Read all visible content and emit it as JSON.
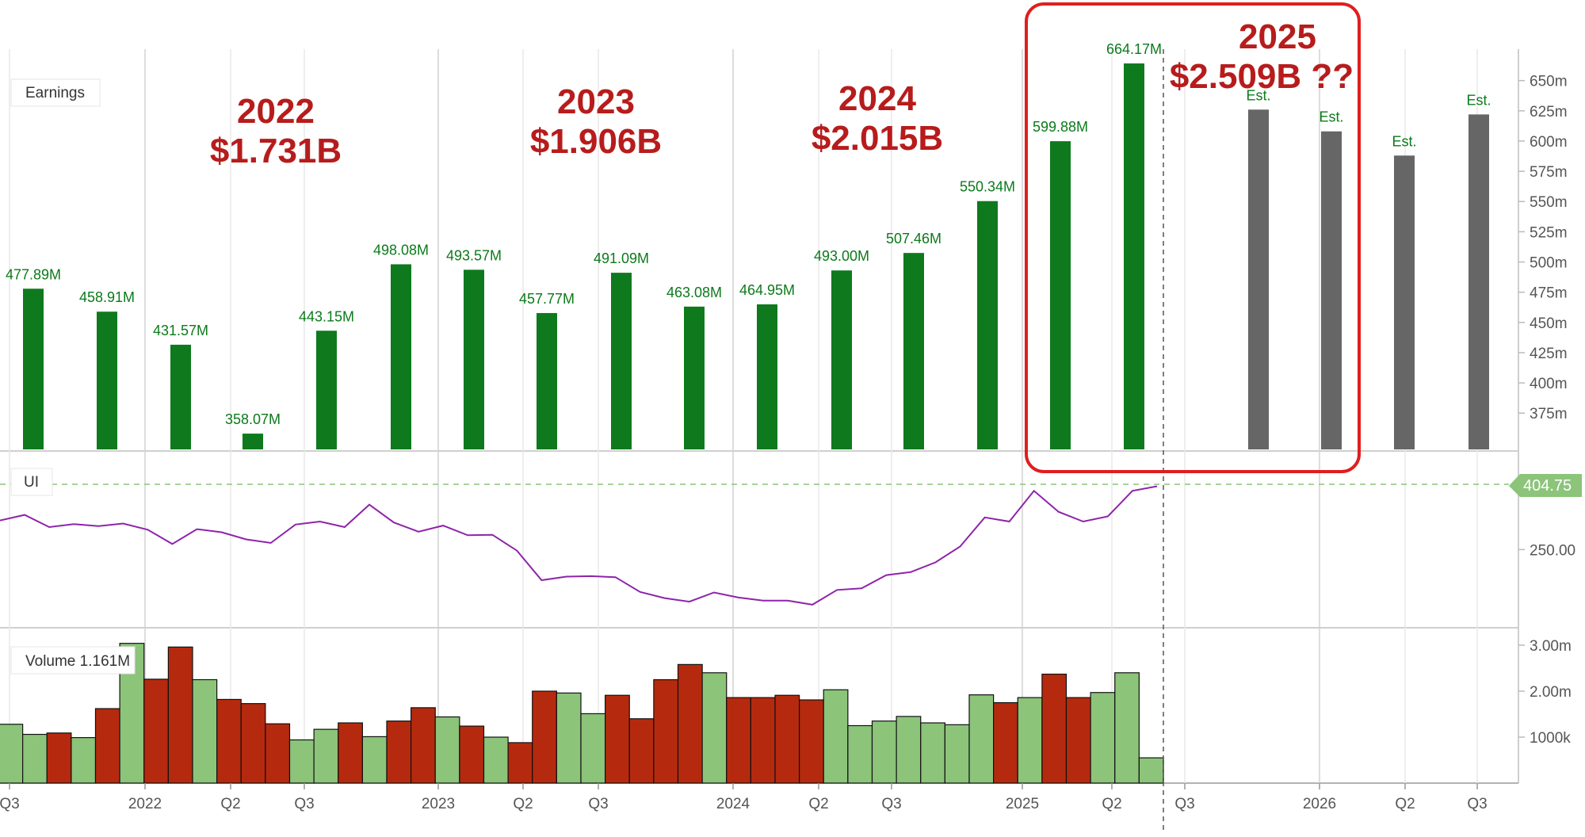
{
  "chart_data": {
    "type": "bar",
    "panels": {
      "earnings": {
        "label": "Earnings",
        "x": [
          "Q3 2021",
          "Q4 2021",
          "Q1 2022",
          "Q2 2022",
          "Q3 2022",
          "Q4 2022",
          "Q1 2023",
          "Q2 2023",
          "Q3 2023",
          "Q4 2023",
          "Q1 2024",
          "Q2 2024",
          "Q3 2024",
          "Q4 2024",
          "Q1 2025",
          "Q2 2025"
        ],
        "values": [
          477.89,
          458.91,
          431.57,
          358.07,
          443.15,
          498.08,
          493.57,
          457.77,
          491.09,
          463.08,
          464.95,
          493.0,
          507.46,
          550.34,
          599.88,
          664.17
        ],
        "value_labels": [
          "477.89M",
          "458.91M",
          "431.57M",
          "358.07M",
          "443.15M",
          "498.08M",
          "493.57M",
          "457.77M",
          "491.09M",
          "463.08M",
          "464.95M",
          "493.00M",
          "507.46M",
          "550.34M",
          "599.88M",
          "664.17M"
        ],
        "estimates": [
          {
            "x": "Q4 2025",
            "value": 626,
            "label": "Est."
          },
          {
            "x": "Q1 2026",
            "value": 608,
            "label": "Est."
          },
          {
            "x": "Q2 2026",
            "value": 588,
            "label": "Est."
          },
          {
            "x": "Q3 2026",
            "value": 622,
            "label": "Est."
          }
        ],
        "y_ticks": [
          "650m",
          "625m",
          "600m",
          "575m",
          "550m",
          "525m",
          "500m",
          "475m",
          "450m",
          "425m",
          "400m",
          "375m"
        ],
        "ylim": [
          345,
          676
        ],
        "colors": {
          "actual": "#0e7a1d",
          "estimate": "#666666"
        }
      },
      "price": {
        "label": "UI",
        "current_value": "404.75",
        "y_ticks": [
          "250.00"
        ],
        "color": "#8e24aa",
        "values": [
          307,
          318,
          294,
          300,
          296,
          301,
          289,
          261,
          290,
          284,
          270,
          263,
          299,
          305,
          294,
          338,
          303,
          285,
          297,
          278,
          279,
          248,
          190,
          197,
          198,
          196,
          167,
          155,
          148,
          166,
          156,
          150,
          150,
          142,
          171,
          174,
          200,
          206,
          225,
          256,
          313,
          305,
          365,
          324,
          305,
          315,
          365,
          374
        ]
      },
      "volume": {
        "label": "Volume 1.161M",
        "y_ticks": [
          "3.00m",
          "2.00m",
          "1000k"
        ],
        "values": [
          1.28,
          1.06,
          1.09,
          0.99,
          1.62,
          3.04,
          2.26,
          2.96,
          2.25,
          1.82,
          1.73,
          1.29,
          0.94,
          1.17,
          1.31,
          1.01,
          1.35,
          1.64,
          1.44,
          1.24,
          1.0,
          0.88,
          2.0,
          1.96,
          1.51,
          1.91,
          1.4,
          2.25,
          2.58,
          2.4,
          1.86,
          1.86,
          1.91,
          1.81,
          2.03,
          1.25,
          1.35,
          1.45,
          1.31,
          1.27,
          1.92,
          1.75,
          1.86,
          2.37,
          1.86,
          1.97,
          2.4,
          0.55
        ],
        "up": [
          true,
          true,
          false,
          true,
          false,
          true,
          false,
          false,
          true,
          false,
          false,
          false,
          true,
          true,
          false,
          true,
          false,
          false,
          true,
          false,
          true,
          false,
          false,
          true,
          true,
          false,
          false,
          false,
          false,
          true,
          false,
          false,
          false,
          false,
          true,
          true,
          true,
          true,
          true,
          true,
          true,
          false,
          true,
          false,
          false,
          true,
          true,
          true
        ],
        "colors": {
          "up": "#8cc47a",
          "down": "#b52a0e"
        }
      }
    },
    "x_axis_labels": [
      "Q3",
      "2022",
      "Q2",
      "Q3",
      "2023",
      "Q2",
      "Q3",
      "2024",
      "Q2",
      "Q3",
      "2025",
      "Q2",
      "Q3",
      "2026",
      "Q2",
      "Q3"
    ],
    "annotations": {
      "years": [
        {
          "year": "2022",
          "total": "$1.731B"
        },
        {
          "year": "2023",
          "total": "$1.906B"
        },
        {
          "year": "2024",
          "total": "$2.015B"
        },
        {
          "year": "2025",
          "total": "$2.509B ??"
        }
      ],
      "highlight_color": "#e01e1e",
      "text_color": "#b71c1c"
    }
  }
}
